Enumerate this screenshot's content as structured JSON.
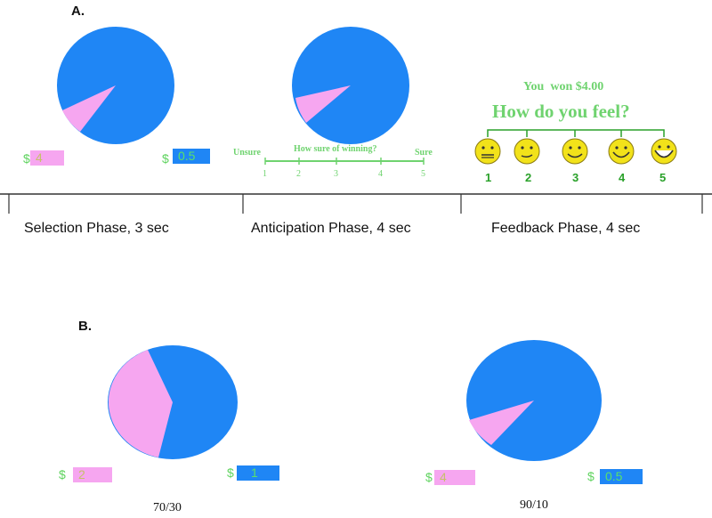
{
  "panel_a": {
    "label": "A.",
    "selection": {
      "pink_amount_dollar": "$",
      "pink_amount": "4",
      "blue_amount_dollar": "$",
      "blue_amount": "0.5"
    },
    "anticipation": {
      "left_label": "Unsure",
      "question": "How sure of winning?",
      "right_label": "Sure",
      "scale": [
        "1",
        "2",
        "3",
        "4",
        "5"
      ]
    },
    "feedback": {
      "result": "You  won $4.00",
      "question": "How do you feel?",
      "scale": [
        "1",
        "2",
        "3",
        "4",
        "5"
      ]
    },
    "phases": [
      "Selection Phase, 3 sec",
      "Anticipation Phase, 4 sec",
      "Feedback Phase, 4 sec"
    ]
  },
  "panel_b": {
    "label": "B.",
    "left": {
      "pink_dollar": "$",
      "pink_amount": "2",
      "blue_dollar": "$",
      "blue_amount": "1",
      "ratio": "70/30"
    },
    "right": {
      "pink_dollar": "$",
      "pink_amount": "4",
      "blue_dollar": "$",
      "blue_amount": "0.5",
      "ratio": "90/10"
    }
  },
  "colors": {
    "blue": "#1f86f5",
    "pink": "#f6a6f0",
    "green": "#6fd36f",
    "face": "#f2e21a"
  }
}
